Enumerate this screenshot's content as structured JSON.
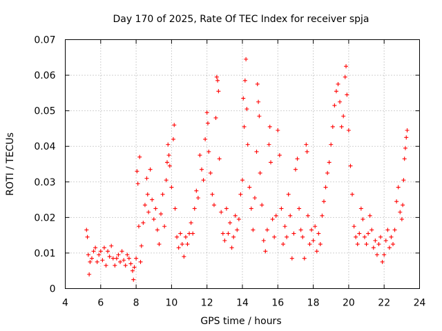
{
  "chart_data": {
    "type": "scatter",
    "title": "Day 170 of 2025, Rate Of TEC Index for receiver spja",
    "xlabel": "GPS time / hours",
    "ylabel": "ROTI / TECUs",
    "xlim": [
      4,
      24
    ],
    "ylim": [
      0,
      0.07
    ],
    "xticks": [
      4,
      6,
      8,
      10,
      12,
      14,
      16,
      18,
      20,
      22,
      24
    ],
    "xtick_labels": [
      "4",
      "6",
      "8",
      "10",
      "12",
      "14",
      "16",
      "18",
      "20",
      "22",
      "24"
    ],
    "yticks": [
      0,
      0.01,
      0.02,
      0.03,
      0.04,
      0.05,
      0.06,
      0.07
    ],
    "ytick_labels": [
      "0",
      "0.01",
      "0.02",
      "0.03",
      "0.04",
      "0.05",
      "0.06",
      "0.07"
    ],
    "grid": true,
    "marker": "+",
    "marker_color": "#ff0000",
    "series": [
      {
        "name": "ROTI",
        "points": [
          [
            5.2,
            0.0165
          ],
          [
            5.25,
            0.0145
          ],
          [
            5.3,
            0.0095
          ],
          [
            5.35,
            0.004
          ],
          [
            5.4,
            0.0075
          ],
          [
            5.5,
            0.0085
          ],
          [
            5.6,
            0.0105
          ],
          [
            5.7,
            0.0115
          ],
          [
            5.8,
            0.0075
          ],
          [
            5.9,
            0.0095
          ],
          [
            6.0,
            0.0105
          ],
          [
            6.1,
            0.008
          ],
          [
            6.2,
            0.0115
          ],
          [
            6.3,
            0.0065
          ],
          [
            6.4,
            0.0105
          ],
          [
            6.5,
            0.009
          ],
          [
            6.6,
            0.012
          ],
          [
            6.7,
            0.0085
          ],
          [
            6.8,
            0.0065
          ],
          [
            6.9,
            0.0085
          ],
          [
            7.0,
            0.0095
          ],
          [
            7.1,
            0.0075
          ],
          [
            7.2,
            0.0105
          ],
          [
            7.3,
            0.008
          ],
          [
            7.4,
            0.0065
          ],
          [
            7.5,
            0.0095
          ],
          [
            7.6,
            0.0085
          ],
          [
            7.7,
            0.007
          ],
          [
            7.8,
            0.005
          ],
          [
            7.85,
            0.0025
          ],
          [
            7.9,
            0.006
          ],
          [
            8.0,
            0.0085
          ],
          [
            8.05,
            0.033
          ],
          [
            8.1,
            0.0295
          ],
          [
            8.15,
            0.0175
          ],
          [
            8.2,
            0.037
          ],
          [
            8.25,
            0.0075
          ],
          [
            8.3,
            0.012
          ],
          [
            8.4,
            0.0185
          ],
          [
            8.5,
            0.0235
          ],
          [
            8.6,
            0.031
          ],
          [
            8.65,
            0.0265
          ],
          [
            8.7,
            0.0215
          ],
          [
            8.8,
            0.0335
          ],
          [
            8.9,
            0.025
          ],
          [
            9.0,
            0.0195
          ],
          [
            9.1,
            0.0225
          ],
          [
            9.2,
            0.0165
          ],
          [
            9.3,
            0.0125
          ],
          [
            9.4,
            0.021
          ],
          [
            9.5,
            0.0265
          ],
          [
            9.6,
            0.0175
          ],
          [
            9.7,
            0.0305
          ],
          [
            9.75,
            0.0355
          ],
          [
            9.8,
            0.0405
          ],
          [
            9.85,
            0.0375
          ],
          [
            9.9,
            0.0345
          ],
          [
            10.0,
            0.0285
          ],
          [
            10.1,
            0.042
          ],
          [
            10.15,
            0.046
          ],
          [
            10.2,
            0.0225
          ],
          [
            10.3,
            0.0145
          ],
          [
            10.4,
            0.0115
          ],
          [
            10.5,
            0.0155
          ],
          [
            10.6,
            0.0125
          ],
          [
            10.7,
            0.009
          ],
          [
            10.8,
            0.0145
          ],
          [
            10.9,
            0.0125
          ],
          [
            11.0,
            0.0155
          ],
          [
            11.1,
            0.0185
          ],
          [
            11.2,
            0.0155
          ],
          [
            11.3,
            0.0225
          ],
          [
            11.4,
            0.0275
          ],
          [
            11.5,
            0.0255
          ],
          [
            11.6,
            0.0375
          ],
          [
            11.7,
            0.0335
          ],
          [
            11.8,
            0.0305
          ],
          [
            11.9,
            0.042
          ],
          [
            12.0,
            0.0495
          ],
          [
            12.05,
            0.0465
          ],
          [
            12.1,
            0.0385
          ],
          [
            12.2,
            0.0325
          ],
          [
            12.3,
            0.0265
          ],
          [
            12.4,
            0.0235
          ],
          [
            12.5,
            0.048
          ],
          [
            12.55,
            0.0595
          ],
          [
            12.6,
            0.0585
          ],
          [
            12.65,
            0.0555
          ],
          [
            12.7,
            0.0365
          ],
          [
            12.8,
            0.0215
          ],
          [
            12.9,
            0.0155
          ],
          [
            13.0,
            0.0135
          ],
          [
            13.1,
            0.0225
          ],
          [
            13.2,
            0.0155
          ],
          [
            13.3,
            0.0185
          ],
          [
            13.4,
            0.0115
          ],
          [
            13.5,
            0.0145
          ],
          [
            13.6,
            0.0205
          ],
          [
            13.7,
            0.0165
          ],
          [
            13.8,
            0.0195
          ],
          [
            13.9,
            0.0265
          ],
          [
            14.0,
            0.0305
          ],
          [
            14.05,
            0.0535
          ],
          [
            14.1,
            0.0455
          ],
          [
            14.15,
            0.0585
          ],
          [
            14.2,
            0.0645
          ],
          [
            14.25,
            0.0505
          ],
          [
            14.3,
            0.0405
          ],
          [
            14.4,
            0.0285
          ],
          [
            14.5,
            0.0225
          ],
          [
            14.6,
            0.0165
          ],
          [
            14.7,
            0.0255
          ],
          [
            14.8,
            0.0385
          ],
          [
            14.85,
            0.0575
          ],
          [
            14.9,
            0.0525
          ],
          [
            14.95,
            0.0485
          ],
          [
            15.0,
            0.0325
          ],
          [
            15.1,
            0.0235
          ],
          [
            15.2,
            0.0135
          ],
          [
            15.3,
            0.0105
          ],
          [
            15.4,
            0.0165
          ],
          [
            15.5,
            0.0405
          ],
          [
            15.55,
            0.0455
          ],
          [
            15.6,
            0.0355
          ],
          [
            15.7,
            0.0195
          ],
          [
            15.8,
            0.0145
          ],
          [
            15.9,
            0.0205
          ],
          [
            16.0,
            0.0445
          ],
          [
            16.1,
            0.0375
          ],
          [
            16.2,
            0.0225
          ],
          [
            16.3,
            0.0125
          ],
          [
            16.4,
            0.0175
          ],
          [
            16.5,
            0.0145
          ],
          [
            16.6,
            0.0265
          ],
          [
            16.7,
            0.0205
          ],
          [
            16.8,
            0.0085
          ],
          [
            16.9,
            0.0155
          ],
          [
            17.0,
            0.0335
          ],
          [
            17.1,
            0.0365
          ],
          [
            17.2,
            0.0225
          ],
          [
            17.3,
            0.0165
          ],
          [
            17.4,
            0.0145
          ],
          [
            17.5,
            0.0085
          ],
          [
            17.6,
            0.0405
          ],
          [
            17.65,
            0.0385
          ],
          [
            17.7,
            0.0205
          ],
          [
            17.8,
            0.0125
          ],
          [
            17.9,
            0.0165
          ],
          [
            18.0,
            0.0135
          ],
          [
            18.1,
            0.0175
          ],
          [
            18.2,
            0.0105
          ],
          [
            18.3,
            0.0155
          ],
          [
            18.4,
            0.0125
          ],
          [
            18.5,
            0.0205
          ],
          [
            18.6,
            0.0245
          ],
          [
            18.7,
            0.0285
          ],
          [
            18.8,
            0.0325
          ],
          [
            18.9,
            0.0355
          ],
          [
            19.0,
            0.0405
          ],
          [
            19.1,
            0.0455
          ],
          [
            19.2,
            0.0515
          ],
          [
            19.3,
            0.0555
          ],
          [
            19.4,
            0.0575
          ],
          [
            19.5,
            0.0525
          ],
          [
            19.6,
            0.0455
          ],
          [
            19.7,
            0.0485
          ],
          [
            19.8,
            0.0595
          ],
          [
            19.85,
            0.0625
          ],
          [
            19.9,
            0.0545
          ],
          [
            20.0,
            0.0445
          ],
          [
            20.1,
            0.0345
          ],
          [
            20.2,
            0.0265
          ],
          [
            20.3,
            0.0175
          ],
          [
            20.4,
            0.0145
          ],
          [
            20.5,
            0.0125
          ],
          [
            20.6,
            0.0155
          ],
          [
            20.7,
            0.0225
          ],
          [
            20.8,
            0.0195
          ],
          [
            20.9,
            0.0145
          ],
          [
            21.0,
            0.0125
          ],
          [
            21.1,
            0.0155
          ],
          [
            21.2,
            0.0205
          ],
          [
            21.3,
            0.0165
          ],
          [
            21.4,
            0.0115
          ],
          [
            21.5,
            0.0135
          ],
          [
            21.6,
            0.0095
          ],
          [
            21.7,
            0.0125
          ],
          [
            21.8,
            0.0145
          ],
          [
            21.9,
            0.0075
          ],
          [
            22.0,
            0.0095
          ],
          [
            22.1,
            0.0135
          ],
          [
            22.2,
            0.0165
          ],
          [
            22.3,
            0.0115
          ],
          [
            22.4,
            0.0145
          ],
          [
            22.5,
            0.0125
          ],
          [
            22.6,
            0.0165
          ],
          [
            22.7,
            0.0245
          ],
          [
            22.8,
            0.0285
          ],
          [
            22.9,
            0.0215
          ],
          [
            23.0,
            0.0195
          ],
          [
            23.05,
            0.0235
          ],
          [
            23.1,
            0.0305
          ],
          [
            23.15,
            0.0365
          ],
          [
            23.2,
            0.0395
          ],
          [
            23.25,
            0.0425
          ],
          [
            23.3,
            0.0445
          ]
        ]
      }
    ]
  }
}
